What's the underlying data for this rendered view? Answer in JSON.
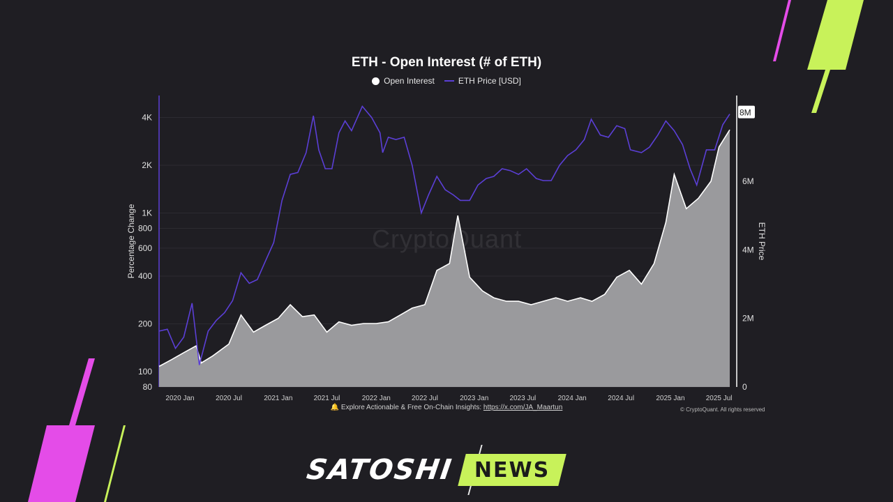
{
  "chart_data": {
    "type": "area",
    "title": "ETH - Open Interest (# of ETH)",
    "legend": [
      "Open Interest",
      "ETH Price [USD]"
    ],
    "legend_position": "top-center",
    "left_axis": {
      "label": "Percentage Change",
      "scale": "log",
      "ticks": [
        "80",
        "100",
        "200",
        "400",
        "600",
        "800",
        "1K",
        "2K",
        "4K"
      ],
      "tick_values": [
        80,
        100,
        200,
        400,
        600,
        800,
        1000,
        2000,
        4000
      ],
      "range": [
        80,
        5500
      ]
    },
    "right_axis": {
      "label": "ETH Price",
      "scale": "linear",
      "ticks": [
        "0",
        "2M",
        "4M",
        "6M",
        "8M"
      ],
      "tick_values": [
        0,
        2000000,
        4000000,
        6000000,
        8000000
      ],
      "range": [
        0,
        8500000
      ]
    },
    "x_ticks": [
      "2020 Jan",
      "2020 Jul",
      "2021 Jan",
      "2021 Jul",
      "2022 Jan",
      "2022 Jul",
      "2023 Jan",
      "2023 Jul",
      "2024 Jan",
      "2024 Jul",
      "2025 Jan",
      "2025 Jul"
    ],
    "x_range": [
      "2019-10-15",
      "2025-08-10"
    ],
    "series": [
      {
        "name": "Open Interest",
        "axis": "right",
        "color": "#ffffff",
        "fill": "#9a9a9d",
        "x": [
          "2019-10-15",
          "2019-12-01",
          "2020-01-15",
          "2020-03-01",
          "2020-03-20",
          "2020-05-01",
          "2020-07-01",
          "2020-08-15",
          "2020-10-01",
          "2020-11-15",
          "2021-01-01",
          "2021-02-15",
          "2021-04-01",
          "2021-05-15",
          "2021-07-01",
          "2021-08-15",
          "2021-10-01",
          "2021-11-15",
          "2022-01-01",
          "2022-02-15",
          "2022-04-01",
          "2022-05-15",
          "2022-07-01",
          "2022-08-15",
          "2022-10-01",
          "2022-11-01",
          "2022-12-15",
          "2023-02-01",
          "2023-03-15",
          "2023-05-01",
          "2023-06-15",
          "2023-08-01",
          "2023-09-15",
          "2023-11-01",
          "2023-12-15",
          "2024-02-01",
          "2024-03-15",
          "2024-05-01",
          "2024-06-15",
          "2024-08-01",
          "2024-09-15",
          "2024-11-01",
          "2024-12-15",
          "2025-01-15",
          "2025-03-01",
          "2025-04-15",
          "2025-06-01",
          "2025-07-01",
          "2025-08-10"
        ],
        "values": [
          600000,
          800000,
          1000000,
          1200000,
          700000,
          900000,
          1250000,
          2100000,
          1600000,
          1800000,
          2000000,
          2400000,
          2050000,
          2100000,
          1600000,
          1900000,
          1800000,
          1850000,
          1850000,
          1900000,
          2100000,
          2300000,
          2400000,
          3400000,
          3600000,
          5000000,
          3200000,
          2800000,
          2600000,
          2500000,
          2500000,
          2400000,
          2500000,
          2600000,
          2500000,
          2600000,
          2500000,
          2700000,
          3200000,
          3400000,
          3000000,
          3600000,
          4800000,
          6200000,
          5200000,
          5500000,
          6000000,
          7000000,
          7500000
        ]
      },
      {
        "name": "ETH Price [USD]",
        "axis": "left",
        "color": "#5b3fd6",
        "x": [
          "2019-10-15",
          "2019-11-15",
          "2019-12-15",
          "2020-01-15",
          "2020-02-15",
          "2020-03-13",
          "2020-04-15",
          "2020-05-15",
          "2020-06-15",
          "2020-07-15",
          "2020-08-15",
          "2020-09-15",
          "2020-10-15",
          "2020-11-15",
          "2020-12-15",
          "2021-01-15",
          "2021-02-15",
          "2021-03-15",
          "2021-04-15",
          "2021-05-12",
          "2021-06-01",
          "2021-06-25",
          "2021-07-20",
          "2021-08-15",
          "2021-09-07",
          "2021-10-01",
          "2021-11-10",
          "2021-12-15",
          "2022-01-15",
          "2022-01-25",
          "2022-02-15",
          "2022-03-15",
          "2022-04-15",
          "2022-05-15",
          "2022-06-18",
          "2022-07-15",
          "2022-08-15",
          "2022-09-15",
          "2022-10-15",
          "2022-11-10",
          "2022-12-15",
          "2023-01-15",
          "2023-02-15",
          "2023-03-15",
          "2023-04-15",
          "2023-05-15",
          "2023-06-15",
          "2023-07-15",
          "2023-08-20",
          "2023-09-15",
          "2023-10-15",
          "2023-11-15",
          "2023-12-15",
          "2024-01-15",
          "2024-02-15",
          "2024-03-12",
          "2024-04-15",
          "2024-05-15",
          "2024-06-15",
          "2024-07-15",
          "2024-08-05",
          "2024-09-15",
          "2024-10-15",
          "2024-11-15",
          "2024-12-15",
          "2025-01-15",
          "2025-02-15",
          "2025-03-15",
          "2025-04-09",
          "2025-05-15",
          "2025-06-15",
          "2025-07-15",
          "2025-08-10"
        ],
        "values": [
          180,
          185,
          140,
          165,
          270,
          110,
          180,
          210,
          235,
          280,
          420,
          360,
          380,
          500,
          650,
          1200,
          1750,
          1800,
          2400,
          4100,
          2500,
          1900,
          1900,
          3200,
          3800,
          3300,
          4700,
          4000,
          3200,
          2400,
          3000,
          2900,
          3000,
          2000,
          1000,
          1300,
          1700,
          1400,
          1300,
          1200,
          1200,
          1500,
          1650,
          1700,
          1900,
          1850,
          1750,
          1900,
          1650,
          1600,
          1600,
          2000,
          2300,
          2500,
          2900,
          3900,
          3100,
          3000,
          3550,
          3400,
          2500,
          2400,
          2600,
          3100,
          3800,
          3300,
          2700,
          1900,
          1500,
          2500,
          2500,
          3600,
          4200
        ]
      }
    ]
  },
  "watermark": "CryptoQuant",
  "footer": {
    "prefix": "🔔 Explore Actionable & Free On-Chain Insights: ",
    "link": "https://x.com/JA_Maartun",
    "copyright": "© CryptoQuant. All rights reserved"
  },
  "brand": {
    "name": "SATOSHI",
    "tag": "NEWS",
    "accent_color": "#c8f25a",
    "pink_color": "#e44ce8"
  }
}
